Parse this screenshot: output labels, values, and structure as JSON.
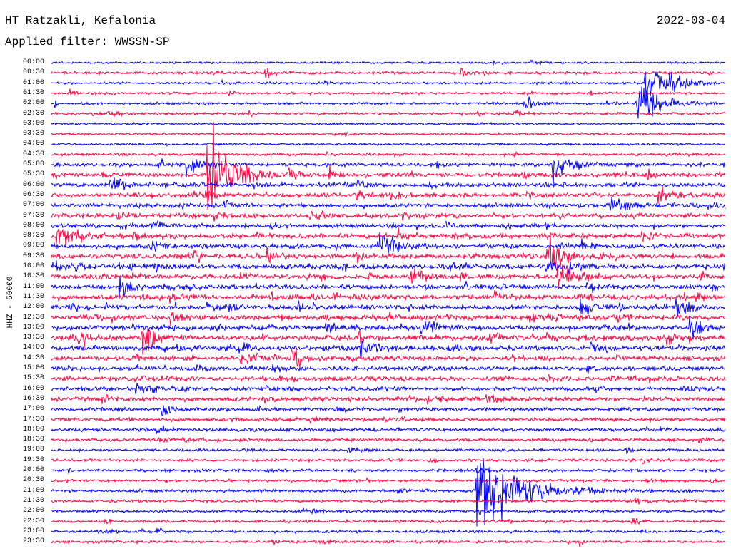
{
  "header": {
    "station": "HT Ratzakli, Kefalonia",
    "filter": "Applied filter: WWSSN-SP",
    "date": "2022-03-04"
  },
  "chart_data": {
    "type": "line",
    "title": "HT Ratzakli, Kefalonia",
    "ylabel": "HHZ - 50000",
    "minutes_per_line": 30,
    "colors": [
      "#0000ff",
      "#ff0040"
    ],
    "row_labels": [
      "00:00",
      "00:30",
      "01:00",
      "01:30",
      "02:00",
      "02:30",
      "03:00",
      "03:30",
      "04:00",
      "04:30",
      "05:00",
      "05:30",
      "06:00",
      "06:30",
      "07:00",
      "07:30",
      "08:00",
      "08:30",
      "09:00",
      "09:30",
      "10:00",
      "10:30",
      "11:00",
      "11:30",
      "12:00",
      "12:30",
      "13:00",
      "13:30",
      "14:00",
      "14:30",
      "15:00",
      "15:30",
      "16:00",
      "16:30",
      "17:00",
      "17:30",
      "18:00",
      "18:30",
      "19:00",
      "19:30",
      "20:00",
      "20:30",
      "21:00",
      "21:30",
      "22:00",
      "22:30",
      "23:00",
      "23:30"
    ],
    "noise_level": [
      0.1,
      0.3,
      0.15,
      0.2,
      0.2,
      0.3,
      0.15,
      0.2,
      0.2,
      0.3,
      0.6,
      0.7,
      0.7,
      0.8,
      0.7,
      0.8,
      0.7,
      0.9,
      0.8,
      0.9,
      1,
      0.9,
      0.9,
      1,
      0.9,
      1,
      0.9,
      1,
      0.9,
      0.8,
      0.7,
      0.8,
      0.7,
      0.7,
      0.5,
      0.5,
      0.5,
      0.4,
      0.3,
      0.3,
      0.3,
      0.3,
      0.3,
      0.3,
      0.3,
      0.3,
      0.3,
      0.3
    ],
    "events": [
      {
        "row": 0,
        "minute": 21.3,
        "amp": 4,
        "dur": 0.6
      },
      {
        "row": 1,
        "minute": 9.5,
        "amp": 8,
        "dur": 0.4
      },
      {
        "row": 1,
        "minute": 18.2,
        "amp": 8,
        "dur": 0.4
      },
      {
        "row": 2,
        "minute": 26.4,
        "amp": 25,
        "dur": 1.2
      },
      {
        "row": 3,
        "minute": 0.8,
        "amp": 6,
        "dur": 0.3
      },
      {
        "row": 3,
        "minute": 7.9,
        "amp": 5,
        "dur": 0.3
      },
      {
        "row": 4,
        "minute": 26.0,
        "amp": 30,
        "dur": 1.2
      },
      {
        "row": 4,
        "minute": 21.0,
        "amp": 8,
        "dur": 0.8
      },
      {
        "row": 4,
        "minute": 0.1,
        "amp": 15,
        "dur": 0.1
      },
      {
        "row": 5,
        "minute": 1.8,
        "amp": 5,
        "dur": 0.3
      },
      {
        "row": 10,
        "minute": 6.0,
        "amp": 18,
        "dur": 0.8
      },
      {
        "row": 10,
        "minute": 22.3,
        "amp": 20,
        "dur": 0.8
      },
      {
        "row": 11,
        "minute": 6.9,
        "amp": 60,
        "dur": 1.2
      },
      {
        "row": 11,
        "minute": 10.5,
        "amp": 10,
        "dur": 0.6
      },
      {
        "row": 11,
        "minute": 12.3,
        "amp": 10,
        "dur": 0.6
      },
      {
        "row": 12,
        "minute": 2.6,
        "amp": 16,
        "dur": 0.6
      },
      {
        "row": 13,
        "minute": 27.0,
        "amp": 12,
        "dur": 0.8
      },
      {
        "row": 14,
        "minute": 24.8,
        "amp": 15,
        "dur": 0.8
      },
      {
        "row": 15,
        "minute": 11.5,
        "amp": 10,
        "dur": 0.6
      },
      {
        "row": 17,
        "minute": 0.2,
        "amp": 14,
        "dur": 1.2
      },
      {
        "row": 18,
        "minute": 14.6,
        "amp": 18,
        "dur": 0.8
      },
      {
        "row": 19,
        "minute": 22.0,
        "amp": 25,
        "dur": 1.0
      },
      {
        "row": 21,
        "minute": 22.5,
        "amp": 18,
        "dur": 1.0
      },
      {
        "row": 21,
        "minute": 16.0,
        "amp": 12,
        "dur": 0.8
      },
      {
        "row": 22,
        "minute": 3.0,
        "amp": 14,
        "dur": 0.7
      },
      {
        "row": 24,
        "minute": 23.5,
        "amp": 12,
        "dur": 0.8
      },
      {
        "row": 24,
        "minute": 27.8,
        "amp": 12,
        "dur": 0.8
      },
      {
        "row": 26,
        "minute": 12.2,
        "amp": 12,
        "dur": 0.7
      },
      {
        "row": 26,
        "minute": 16.4,
        "amp": 14,
        "dur": 0.8
      },
      {
        "row": 26,
        "minute": 28.4,
        "amp": 12,
        "dur": 0.7
      },
      {
        "row": 27,
        "minute": 4.0,
        "amp": 16,
        "dur": 0.8
      },
      {
        "row": 28,
        "minute": 13.7,
        "amp": 14,
        "dur": 0.8
      },
      {
        "row": 29,
        "minute": 10.6,
        "amp": 14,
        "dur": 0.8
      },
      {
        "row": 34,
        "minute": 4.9,
        "amp": 9,
        "dur": 0.5
      },
      {
        "row": 40,
        "minute": 18.9,
        "amp": 8,
        "dur": 0.3
      },
      {
        "row": 42,
        "minute": 18.9,
        "amp": 40,
        "dur": 2.4
      },
      {
        "row": 46,
        "minute": 4.7,
        "amp": 5,
        "dur": 0.3
      },
      {
        "row": 47,
        "minute": 9.8,
        "amp": 4,
        "dur": 0.3
      }
    ]
  }
}
